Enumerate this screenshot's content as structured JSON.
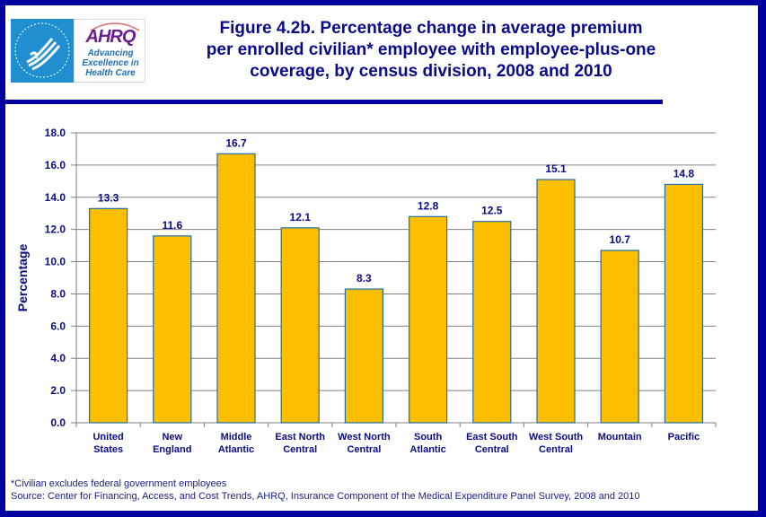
{
  "logo": {
    "hhs_label": "HHS seal",
    "ahrq_wordmark": "AHRQ",
    "ahrq_tagline": [
      "Advancing",
      "Excellence in",
      "Health Care"
    ]
  },
  "footnote": "*Civilian excludes federal government employees",
  "source": "Source: Center for Financing, Access, and Cost Trends, AHRQ, Insurance Component of the Medical Expenditure Panel Survey, 2008 and 2010",
  "colors": {
    "bar_fill": "#ffc000",
    "bar_stroke": "#1f6fa8",
    "text": "#0a0a8a",
    "grid": "#808080",
    "frame": "#0000a0"
  },
  "chart_data": {
    "type": "bar",
    "title": "Figure 4.2b. Percentage change in average premium per enrolled civilian* employee with employee-plus-one coverage, by census division, 2008 and 2010",
    "title_lines": [
      "Figure 4.2b. Percentage change in average premium",
      "per enrolled civilian* employee with employee-plus-one",
      "coverage, by census division, 2008 and 2010"
    ],
    "xlabel": "",
    "ylabel": "Percentage",
    "categories": [
      [
        "United",
        "States"
      ],
      [
        "New",
        "England"
      ],
      [
        "Middle",
        "Atlantic"
      ],
      [
        "East North",
        "Central"
      ],
      [
        "West North",
        "Central"
      ],
      [
        "South",
        "Atlantic"
      ],
      [
        "East South",
        "Central"
      ],
      [
        "West South",
        "Central"
      ],
      [
        "Mountain"
      ],
      [
        "Pacific"
      ]
    ],
    "values": [
      13.3,
      11.6,
      16.7,
      12.1,
      8.3,
      12.8,
      12.5,
      15.1,
      10.7,
      14.8
    ],
    "data_labels": [
      "13.3",
      "11.6",
      "16.7",
      "12.1",
      "8.3",
      "12.8",
      "12.5",
      "15.1",
      "10.7",
      "14.8"
    ],
    "ylim": [
      0,
      18
    ],
    "yticks": [
      0,
      2,
      4,
      6,
      8,
      10,
      12,
      14,
      16,
      18
    ],
    "ytick_labels": [
      "0.0",
      "2.0",
      "4.0",
      "6.0",
      "8.0",
      "10.0",
      "12.0",
      "14.0",
      "16.0",
      "18.0"
    ],
    "grid": true,
    "legend": "none"
  }
}
